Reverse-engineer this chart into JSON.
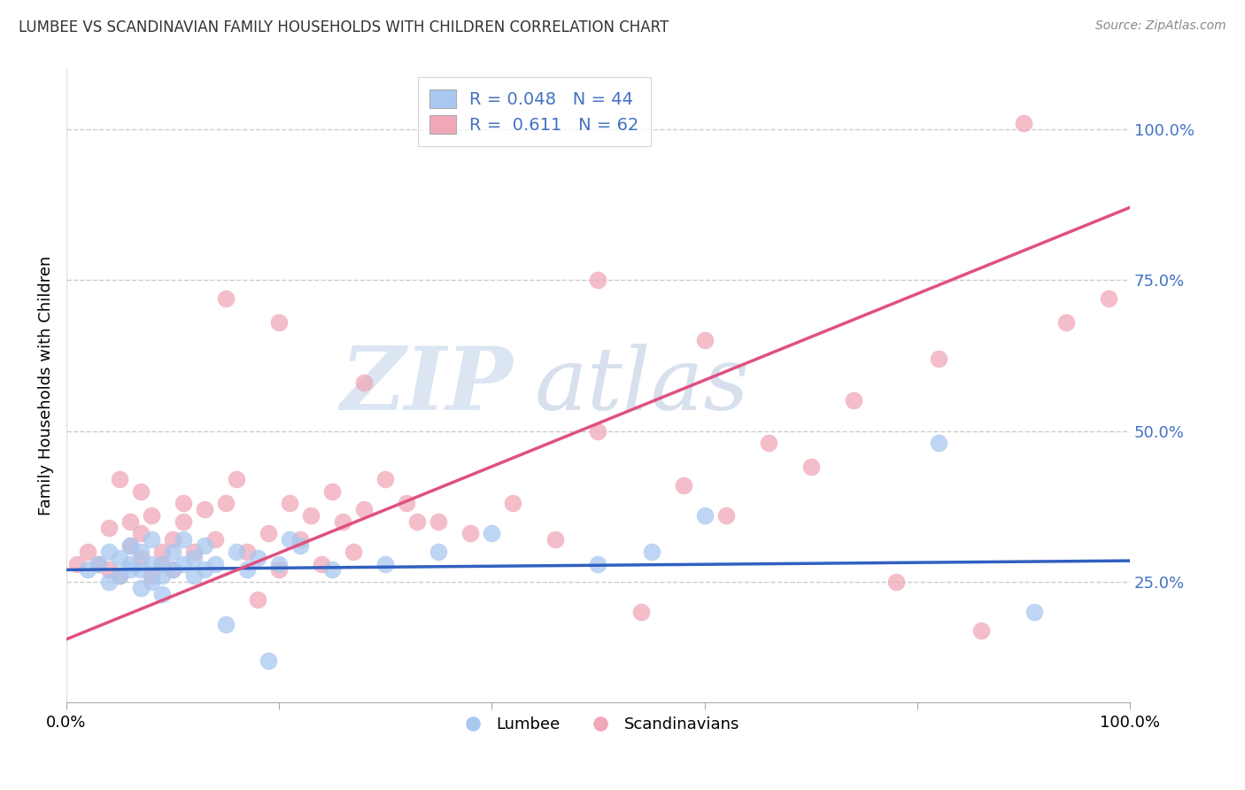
{
  "title": "LUMBEE VS SCANDINAVIAN FAMILY HOUSEHOLDS WITH CHILDREN CORRELATION CHART",
  "source": "Source: ZipAtlas.com",
  "ylabel": "Family Households with Children",
  "xlim": [
    0.0,
    1.0
  ],
  "ylim": [
    0.05,
    1.1
  ],
  "x_tick_labels": [
    "0.0%",
    "100.0%"
  ],
  "y_tick_labels": [
    "25.0%",
    "50.0%",
    "75.0%",
    "100.0%"
  ],
  "y_tick_positions": [
    0.25,
    0.5,
    0.75,
    1.0
  ],
  "lumbee_R": 0.048,
  "lumbee_N": 44,
  "scandinavian_R": 0.611,
  "scandinavian_N": 62,
  "lumbee_color": "#a8c8f0",
  "scandinavian_color": "#f0a8b8",
  "lumbee_line_color": "#3060c0",
  "scandinavian_line_color": "#e05080",
  "watermark_zip": "ZIP",
  "watermark_atlas": "atlas",
  "lumbee_x": [
    0.02,
    0.03,
    0.04,
    0.04,
    0.05,
    0.05,
    0.06,
    0.06,
    0.06,
    0.07,
    0.07,
    0.07,
    0.08,
    0.08,
    0.08,
    0.09,
    0.09,
    0.09,
    0.1,
    0.1,
    0.11,
    0.11,
    0.12,
    0.12,
    0.13,
    0.13,
    0.14,
    0.15,
    0.16,
    0.17,
    0.18,
    0.19,
    0.2,
    0.21,
    0.22,
    0.25,
    0.3,
    0.35,
    0.4,
    0.5,
    0.55,
    0.6,
    0.82,
    0.91
  ],
  "lumbee_y": [
    0.27,
    0.28,
    0.25,
    0.3,
    0.26,
    0.29,
    0.27,
    0.28,
    0.31,
    0.24,
    0.27,
    0.3,
    0.25,
    0.28,
    0.32,
    0.26,
    0.28,
    0.23,
    0.27,
    0.3,
    0.28,
    0.32,
    0.26,
    0.29,
    0.27,
    0.31,
    0.28,
    0.18,
    0.3,
    0.27,
    0.29,
    0.12,
    0.28,
    0.32,
    0.31,
    0.27,
    0.28,
    0.3,
    0.33,
    0.28,
    0.3,
    0.36,
    0.48,
    0.2
  ],
  "scandinavian_x": [
    0.01,
    0.02,
    0.03,
    0.04,
    0.04,
    0.05,
    0.05,
    0.06,
    0.06,
    0.07,
    0.07,
    0.07,
    0.08,
    0.08,
    0.09,
    0.09,
    0.1,
    0.1,
    0.11,
    0.11,
    0.12,
    0.13,
    0.14,
    0.15,
    0.16,
    0.17,
    0.18,
    0.19,
    0.2,
    0.21,
    0.22,
    0.23,
    0.24,
    0.25,
    0.26,
    0.27,
    0.28,
    0.3,
    0.32,
    0.35,
    0.38,
    0.42,
    0.46,
    0.5,
    0.54,
    0.58,
    0.62,
    0.66,
    0.7,
    0.74,
    0.78,
    0.82,
    0.86,
    0.9,
    0.94,
    0.98,
    0.2,
    0.15,
    0.28,
    0.33,
    0.5,
    0.6
  ],
  "scandinavian_y": [
    0.28,
    0.3,
    0.28,
    0.34,
    0.27,
    0.42,
    0.26,
    0.31,
    0.35,
    0.29,
    0.33,
    0.4,
    0.26,
    0.36,
    0.28,
    0.3,
    0.32,
    0.27,
    0.38,
    0.35,
    0.3,
    0.37,
    0.32,
    0.38,
    0.42,
    0.3,
    0.22,
    0.33,
    0.27,
    0.38,
    0.32,
    0.36,
    0.28,
    0.4,
    0.35,
    0.3,
    0.37,
    0.42,
    0.38,
    0.35,
    0.33,
    0.38,
    0.32,
    0.5,
    0.2,
    0.41,
    0.36,
    0.48,
    0.44,
    0.55,
    0.25,
    0.62,
    0.17,
    1.01,
    0.68,
    0.72,
    0.68,
    0.72,
    0.58,
    0.35,
    0.75,
    0.65
  ]
}
